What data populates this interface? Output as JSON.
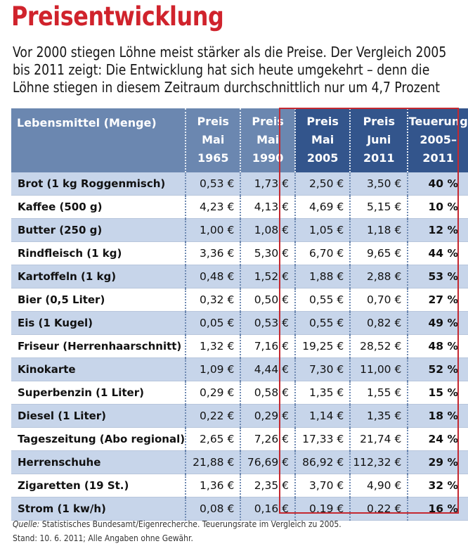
{
  "title": "Preisentwicklung",
  "intro": "Vor 2000 stiegen Löhne meist stärker als die Preise. Der Vergleich 2005 bis 2011 zeigt: Die Entwicklung hat sich heute umgekehrt – denn die Löhne stiegen in diesem Zeitraum durchschnittlich nur um 4,7 Prozent",
  "table": {
    "headers": [
      [
        "Lebensmittel (Menge)"
      ],
      [
        "Preis",
        "Mai",
        "1965"
      ],
      [
        "Preis",
        "Mai",
        "1990"
      ],
      [
        "Preis",
        "Mai",
        "2005"
      ],
      [
        "Preis",
        "Juni",
        "2011"
      ],
      [
        "Teuerung",
        "2005–",
        "2011"
      ]
    ],
    "rows": [
      [
        "Brot (1 kg Roggenmisch)",
        "0,53 €",
        "1,73 €",
        "2,50 €",
        "3,50 €",
        "40 %"
      ],
      [
        "Kaffee (500 g)",
        "4,23 €",
        "4,13 €",
        "4,69 €",
        "5,15 €",
        "10 %"
      ],
      [
        "Butter (250 g)",
        "1,00 €",
        "1,08 €",
        "1,05 €",
        "1,18 €",
        "12 %"
      ],
      [
        "Rindfleisch (1 kg)",
        "3,36 €",
        "5,30 €",
        "6,70 €",
        "9,65 €",
        "44 %"
      ],
      [
        "Kartoffeln (1 kg)",
        "0,48 €",
        "1,52 €",
        "1,88 €",
        "2,88 €",
        "53 %"
      ],
      [
        "Bier (0,5 Liter)",
        "0,32 €",
        "0,50 €",
        "0,55 €",
        "0,70 €",
        "27 %"
      ],
      [
        "Eis (1 Kugel)",
        "0,05 €",
        "0,53 €",
        "0,55 €",
        "0,82 €",
        "49 %"
      ],
      [
        "Friseur (Herrenhaarschnitt)",
        "1,32 €",
        "7,16 €",
        "19,25 €",
        "28,52 €",
        "48 %"
      ],
      [
        "Kinokarte",
        "1,09 €",
        "4,44 €",
        "7,30 €",
        "11,00 €",
        "52 %"
      ],
      [
        "Superbenzin (1 Liter)",
        "0,29 €",
        "0,58 €",
        "1,35 €",
        "1,55 €",
        "15 %"
      ],
      [
        "Diesel (1 Liter)",
        "0,22 €",
        "0,29 €",
        "1,14 €",
        "1,35 €",
        "18 %"
      ],
      [
        "Tageszeitung (Abo regional)",
        "2,65 €",
        "7,26 €",
        "17,33 €",
        "21,74 €",
        "24 %"
      ],
      [
        "Herrenschuhe",
        "21,88 €",
        "76,69 €",
        "86,92 €",
        "112,32 €",
        "29 %"
      ],
      [
        "Zigaretten (19 St.)",
        "1,36 €",
        "2,35 €",
        "3,70 €",
        "4,90 €",
        "32 %"
      ],
      [
        "Strom (1 kw/h)",
        "0,08 €",
        "0,16 €",
        "0,19 €",
        "0,22 €",
        "16 %"
      ]
    ]
  },
  "footer": {
    "source_label": "Quelle:",
    "source_text": "Statistisches Bundesamt/Eigenrecherche. Teuerungsrate im Vergleich zu 2005.",
    "date_line": "Stand: 10. 6. 2011; Alle Angaben ohne Gewähr."
  },
  "colors": {
    "title": "#d0232c",
    "header_light": "#6b87b0",
    "header_dark": "#33558c",
    "row_shade": "#c7d5ea",
    "highlight_border": "#c42830"
  }
}
